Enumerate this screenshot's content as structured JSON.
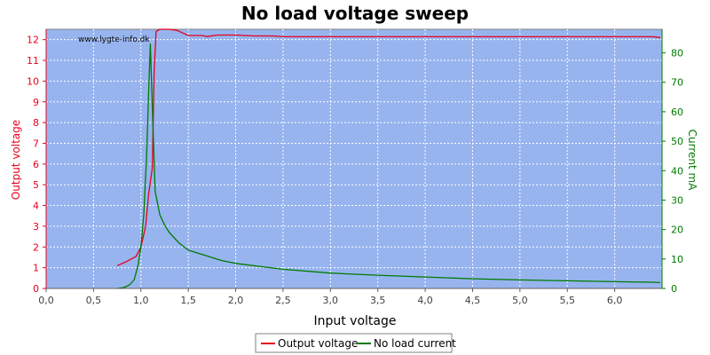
{
  "chart_data": {
    "type": "line",
    "title": "No load voltage sweep",
    "watermark": "www.lygte-info.dk",
    "xlabel": "Input voltage",
    "ylabel_left": "Output voltage",
    "ylabel_right": "Current mA",
    "xlim": [
      0,
      6.5
    ],
    "ylim_left": [
      0,
      12.5
    ],
    "ylim_right": [
      0,
      88
    ],
    "x_ticks": [
      "0,0",
      "0,5",
      "1,0",
      "1,5",
      "2,0",
      "2,5",
      "3,0",
      "3,5",
      "4,0",
      "4,5",
      "5,0",
      "5,5",
      "6,0"
    ],
    "y_left_ticks": [
      "0",
      "1",
      "2",
      "3",
      "4",
      "5",
      "6",
      "7",
      "8",
      "9",
      "10",
      "11",
      "12"
    ],
    "y_right_ticks": [
      "0",
      "10",
      "20",
      "30",
      "40",
      "50",
      "60",
      "70",
      "80"
    ],
    "grid": true,
    "legend_position": "bottom-center",
    "colors": {
      "output_voltage": "#e8001c",
      "no_load_current": "#007a00",
      "plot_bg": "#97b4ef"
    },
    "series": [
      {
        "name": "Output voltage",
        "axis": "left",
        "x": [
          0.75,
          0.85,
          0.95,
          1.0,
          1.05,
          1.08,
          1.12,
          1.14,
          1.16,
          1.2,
          1.3,
          1.38,
          1.5,
          1.65,
          1.7,
          1.8,
          2.0,
          2.2,
          2.4,
          2.5,
          3.0,
          4.0,
          5.0,
          6.0,
          6.4,
          6.48
        ],
        "y": [
          1.1,
          1.3,
          1.55,
          2.0,
          3.0,
          4.5,
          5.8,
          10.5,
          12.4,
          12.5,
          12.5,
          12.45,
          12.2,
          12.2,
          12.15,
          12.22,
          12.22,
          12.18,
          12.18,
          12.14,
          12.14,
          12.14,
          12.14,
          12.14,
          12.14,
          12.1
        ]
      },
      {
        "name": "No load current",
        "axis": "right",
        "x": [
          0.75,
          0.82,
          0.88,
          0.93,
          0.97,
          1.0,
          1.03,
          1.06,
          1.08,
          1.1,
          1.12,
          1.15,
          1.2,
          1.25,
          1.3,
          1.4,
          1.5,
          1.7,
          1.85,
          2.0,
          2.25,
          2.5,
          3.0,
          3.5,
          4.0,
          4.5,
          5.0,
          5.5,
          6.0,
          6.4,
          6.48
        ],
        "y": [
          0,
          0.3,
          1.2,
          3.0,
          8.0,
          14.0,
          25.0,
          45.0,
          65.0,
          83.0,
          62.0,
          33.0,
          25.0,
          21.5,
          19.0,
          15.5,
          13.0,
          11.0,
          9.5,
          8.5,
          7.5,
          6.5,
          5.2,
          4.5,
          3.9,
          3.3,
          2.9,
          2.6,
          2.3,
          2.1,
          2.0
        ]
      }
    ]
  }
}
